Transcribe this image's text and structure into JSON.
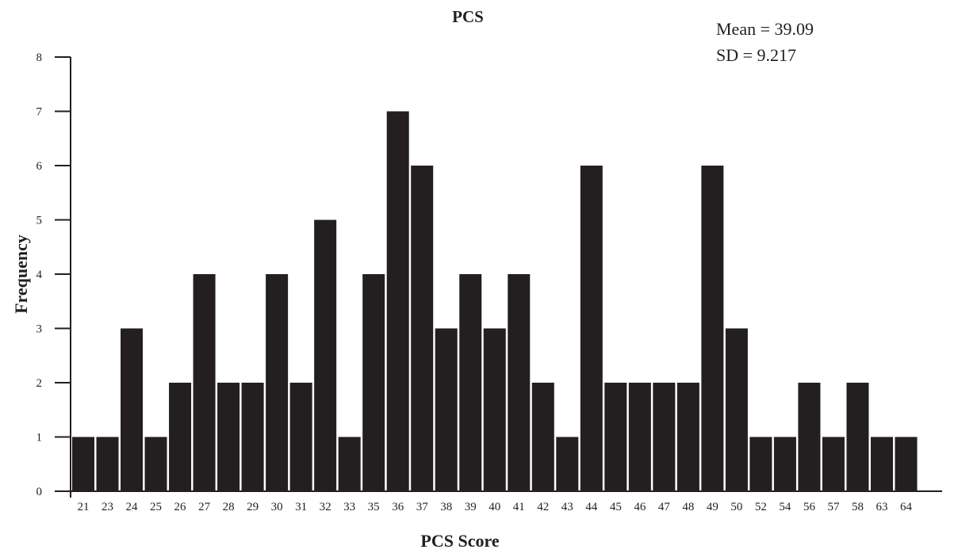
{
  "chart_data": {
    "type": "bar",
    "title": "PCS",
    "xlabel": "PCS Score",
    "ylabel": "Frequency",
    "categories": [
      "21",
      "23",
      "24",
      "25",
      "26",
      "27",
      "28",
      "29",
      "30",
      "31",
      "32",
      "33",
      "35",
      "36",
      "37",
      "38",
      "39",
      "40",
      "41",
      "42",
      "43",
      "44",
      "45",
      "46",
      "47",
      "48",
      "49",
      "50",
      "52",
      "54",
      "56",
      "57",
      "58",
      "63",
      "64"
    ],
    "values": [
      1,
      1,
      3,
      1,
      2,
      4,
      2,
      2,
      4,
      2,
      5,
      1,
      4,
      7,
      6,
      3,
      4,
      3,
      4,
      2,
      1,
      6,
      2,
      2,
      2,
      2,
      6,
      3,
      1,
      1,
      2,
      1,
      2,
      1,
      1
    ],
    "ylim": [
      0,
      8
    ],
    "yticks": [
      0,
      1,
      2,
      3,
      4,
      5,
      6,
      7,
      8
    ],
    "grid": false,
    "bar_color": "#231f20",
    "annotations": {
      "mean": "Mean = 39.09",
      "sd": "SD = 9.217"
    }
  }
}
